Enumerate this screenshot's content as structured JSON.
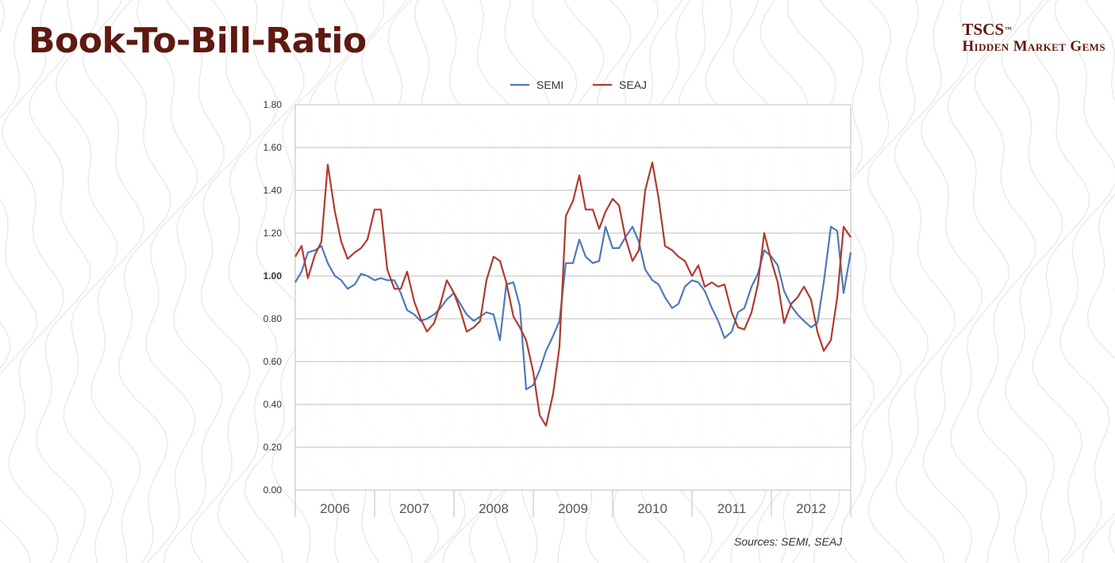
{
  "header": {
    "title": "Book-To-Bill-Ratio",
    "brand_line1": "TSCS",
    "brand_tm": "™",
    "brand_line2": "Hidden Market Gems"
  },
  "source": "Sources: SEMI, SEAJ",
  "chart_data": {
    "type": "line",
    "title": "",
    "xlabel": "",
    "ylabel": "",
    "ylim": [
      0,
      1.8
    ],
    "yticks": [
      "0.00",
      "0.20",
      "0.40",
      "0.60",
      "0.80",
      "1.00",
      "1.20",
      "1.40",
      "1.60",
      "1.80"
    ],
    "xlim": [
      2005.42,
      2012.42
    ],
    "year_labels": [
      "2006",
      "2007",
      "2008",
      "2009",
      "2010",
      "2011",
      "2012"
    ],
    "grid": true,
    "legend_position": "top-center",
    "series": [
      {
        "name": "SEMI",
        "color": "#4f79b8",
        "points": [
          [
            2005.42,
            0.97
          ],
          [
            2005.5,
            1.02
          ],
          [
            2005.58,
            1.11
          ],
          [
            2005.67,
            1.12
          ],
          [
            2005.75,
            1.14
          ],
          [
            2005.83,
            1.06
          ],
          [
            2005.92,
            1.0
          ],
          [
            2006.0,
            0.98
          ],
          [
            2006.08,
            0.94
          ],
          [
            2006.17,
            0.96
          ],
          [
            2006.25,
            1.01
          ],
          [
            2006.33,
            1.0
          ],
          [
            2006.42,
            0.98
          ],
          [
            2006.5,
            0.99
          ],
          [
            2006.58,
            0.98
          ],
          [
            2006.67,
            0.98
          ],
          [
            2006.75,
            0.92
          ],
          [
            2006.83,
            0.84
          ],
          [
            2006.92,
            0.82
          ],
          [
            2007.0,
            0.79
          ],
          [
            2007.08,
            0.8
          ],
          [
            2007.17,
            0.82
          ],
          [
            2007.25,
            0.85
          ],
          [
            2007.33,
            0.89
          ],
          [
            2007.42,
            0.92
          ],
          [
            2007.5,
            0.87
          ],
          [
            2007.58,
            0.82
          ],
          [
            2007.67,
            0.79
          ],
          [
            2007.75,
            0.81
          ],
          [
            2007.83,
            0.83
          ],
          [
            2007.92,
            0.82
          ],
          [
            2008.0,
            0.7
          ],
          [
            2008.08,
            0.96
          ],
          [
            2008.17,
            0.97
          ],
          [
            2008.25,
            0.86
          ],
          [
            2008.33,
            0.47
          ],
          [
            2008.42,
            0.49
          ],
          [
            2008.5,
            0.56
          ],
          [
            2008.58,
            0.65
          ],
          [
            2008.67,
            0.72
          ],
          [
            2008.75,
            0.79
          ],
          [
            2008.83,
            1.06
          ],
          [
            2008.92,
            1.06
          ],
          [
            2009.0,
            1.17
          ],
          [
            2009.08,
            1.09
          ],
          [
            2009.17,
            1.06
          ],
          [
            2009.25,
            1.07
          ],
          [
            2009.33,
            1.23
          ],
          [
            2009.42,
            1.13
          ],
          [
            2009.5,
            1.13
          ],
          [
            2009.58,
            1.18
          ],
          [
            2009.67,
            1.23
          ],
          [
            2009.75,
            1.16
          ],
          [
            2009.83,
            1.03
          ],
          [
            2009.92,
            0.98
          ],
          [
            2010.0,
            0.96
          ],
          [
            2010.08,
            0.9
          ],
          [
            2010.17,
            0.85
          ],
          [
            2010.25,
            0.87
          ],
          [
            2010.33,
            0.95
          ],
          [
            2010.42,
            0.98
          ],
          [
            2010.5,
            0.97
          ],
          [
            2010.58,
            0.93
          ],
          [
            2010.67,
            0.85
          ],
          [
            2010.75,
            0.79
          ],
          [
            2010.83,
            0.71
          ],
          [
            2010.92,
            0.74
          ],
          [
            2011.0,
            0.83
          ],
          [
            2011.08,
            0.85
          ],
          [
            2011.17,
            0.95
          ],
          [
            2011.25,
            1.01
          ],
          [
            2011.33,
            1.12
          ],
          [
            2011.42,
            1.09
          ],
          [
            2011.5,
            1.05
          ],
          [
            2011.58,
            0.93
          ],
          [
            2011.67,
            0.86
          ],
          [
            2011.75,
            0.82
          ],
          [
            2011.83,
            0.79
          ],
          [
            2011.92,
            0.76
          ],
          [
            2012.0,
            0.78
          ],
          [
            2012.08,
            0.97
          ],
          [
            2012.17,
            1.23
          ],
          [
            2012.25,
            1.21
          ],
          [
            2012.33,
            0.92
          ],
          [
            2012.42,
            1.11
          ]
        ]
      },
      {
        "name": "SEAJ",
        "color": "#b03a2e",
        "points": [
          [
            2005.42,
            1.09
          ],
          [
            2005.5,
            1.14
          ],
          [
            2005.58,
            0.99
          ],
          [
            2005.67,
            1.1
          ],
          [
            2005.75,
            1.16
          ],
          [
            2005.83,
            1.52
          ],
          [
            2005.92,
            1.3
          ],
          [
            2006.0,
            1.16
          ],
          [
            2006.08,
            1.08
          ],
          [
            2006.17,
            1.11
          ],
          [
            2006.25,
            1.13
          ],
          [
            2006.33,
            1.17
          ],
          [
            2006.42,
            1.31
          ],
          [
            2006.5,
            1.31
          ],
          [
            2006.58,
            1.03
          ],
          [
            2006.67,
            0.94
          ],
          [
            2006.75,
            0.94
          ],
          [
            2006.83,
            1.02
          ],
          [
            2006.92,
            0.88
          ],
          [
            2007.0,
            0.8
          ],
          [
            2007.08,
            0.74
          ],
          [
            2007.17,
            0.78
          ],
          [
            2007.25,
            0.87
          ],
          [
            2007.33,
            0.98
          ],
          [
            2007.42,
            0.92
          ],
          [
            2007.5,
            0.84
          ],
          [
            2007.58,
            0.74
          ],
          [
            2007.67,
            0.76
          ],
          [
            2007.75,
            0.79
          ],
          [
            2007.83,
            0.98
          ],
          [
            2007.92,
            1.09
          ],
          [
            2008.0,
            1.07
          ],
          [
            2008.08,
            0.97
          ],
          [
            2008.17,
            0.81
          ],
          [
            2008.25,
            0.76
          ],
          [
            2008.33,
            0.7
          ],
          [
            2008.42,
            0.55
          ],
          [
            2008.5,
            0.35
          ],
          [
            2008.58,
            0.3
          ],
          [
            2008.67,
            0.45
          ],
          [
            2008.75,
            0.67
          ],
          [
            2008.83,
            1.28
          ],
          [
            2008.92,
            1.35
          ],
          [
            2009.0,
            1.47
          ],
          [
            2009.08,
            1.31
          ],
          [
            2009.17,
            1.31
          ],
          [
            2009.25,
            1.22
          ],
          [
            2009.33,
            1.3
          ],
          [
            2009.42,
            1.36
          ],
          [
            2009.5,
            1.33
          ],
          [
            2009.58,
            1.18
          ],
          [
            2009.67,
            1.07
          ],
          [
            2009.75,
            1.12
          ],
          [
            2009.83,
            1.4
          ],
          [
            2009.92,
            1.53
          ],
          [
            2010.0,
            1.36
          ],
          [
            2010.08,
            1.14
          ],
          [
            2010.17,
            1.12
          ],
          [
            2010.25,
            1.09
          ],
          [
            2010.33,
            1.07
          ],
          [
            2010.42,
            1.0
          ],
          [
            2010.5,
            1.05
          ],
          [
            2010.58,
            0.95
          ],
          [
            2010.67,
            0.97
          ],
          [
            2010.75,
            0.95
          ],
          [
            2010.83,
            0.96
          ],
          [
            2010.92,
            0.83
          ],
          [
            2011.0,
            0.76
          ],
          [
            2011.08,
            0.75
          ],
          [
            2011.17,
            0.83
          ],
          [
            2011.25,
            0.96
          ],
          [
            2011.33,
            1.2
          ],
          [
            2011.42,
            1.07
          ],
          [
            2011.5,
            0.97
          ],
          [
            2011.58,
            0.78
          ],
          [
            2011.67,
            0.87
          ],
          [
            2011.75,
            0.9
          ],
          [
            2011.83,
            0.95
          ],
          [
            2011.92,
            0.89
          ],
          [
            2012.0,
            0.74
          ],
          [
            2012.08,
            0.65
          ],
          [
            2012.17,
            0.7
          ],
          [
            2012.25,
            0.9
          ],
          [
            2012.33,
            1.23
          ],
          [
            2012.42,
            1.18
          ]
        ]
      }
    ]
  }
}
